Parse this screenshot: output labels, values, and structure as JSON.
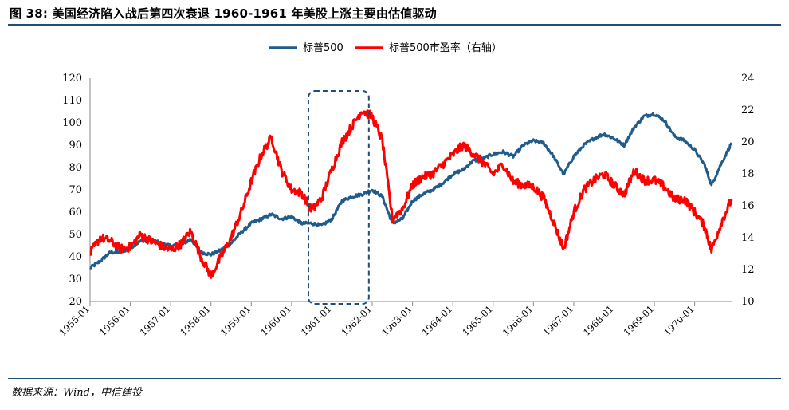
{
  "figure": {
    "title": "图 38: 美国经济陷入战后第四次衰退 1960-1961 年美股上涨主要由估值驱动",
    "source": "数据来源：Wind，中信建投"
  },
  "chart_data": {
    "type": "line",
    "legend": [
      "标普500",
      "标普500市盈率（右轴）"
    ],
    "legend_position": "top-center",
    "colors": {
      "sp500": "#1f5c8b",
      "pe": "#ff0000",
      "frame": "#1f4e79",
      "highlight_box": "#1f4e79"
    },
    "y_left": {
      "min": 20,
      "max": 120,
      "ticks": [
        20,
        30,
        40,
        50,
        60,
        70,
        80,
        90,
        100,
        110,
        120
      ]
    },
    "y_right": {
      "min": 10,
      "max": 24,
      "ticks": [
        10,
        12,
        14,
        16,
        18,
        20,
        22,
        24
      ]
    },
    "x_ticks": [
      "1955-01",
      "1956-01",
      "1957-01",
      "1958-01",
      "1959-01",
      "1960-01",
      "1961-01",
      "1962-01",
      "1963-01",
      "1964-01",
      "1965-01",
      "1966-01",
      "1967-01",
      "1968-01",
      "1969-01",
      "1970-01"
    ],
    "highlight": {
      "from": "1960-06",
      "to": "1961-12",
      "style": "dashed rounded box"
    },
    "grid": false,
    "series": [
      {
        "name": "标普500",
        "axis": "left",
        "points": [
          [
            "1955-01",
            35
          ],
          [
            "1955-04",
            38
          ],
          [
            "1955-07",
            42
          ],
          [
            "1955-10",
            42
          ],
          [
            "1956-01",
            44
          ],
          [
            "1956-04",
            47
          ],
          [
            "1956-07",
            48
          ],
          [
            "1956-10",
            46
          ],
          [
            "1957-01",
            45
          ],
          [
            "1957-04",
            45
          ],
          [
            "1957-07",
            48
          ],
          [
            "1957-10",
            42
          ],
          [
            "1958-01",
            41
          ],
          [
            "1958-04",
            43
          ],
          [
            "1958-07",
            46
          ],
          [
            "1958-10",
            51
          ],
          [
            "1959-01",
            55
          ],
          [
            "1959-04",
            57
          ],
          [
            "1959-07",
            59
          ],
          [
            "1959-10",
            57
          ],
          [
            "1960-01",
            58
          ],
          [
            "1960-04",
            55
          ],
          [
            "1960-07",
            55
          ],
          [
            "1960-10",
            54
          ],
          [
            "1961-01",
            57
          ],
          [
            "1961-04",
            65
          ],
          [
            "1961-07",
            67
          ],
          [
            "1961-10",
            68
          ],
          [
            "1962-01",
            70
          ],
          [
            "1962-04",
            67
          ],
          [
            "1962-07",
            55
          ],
          [
            "1962-10",
            57
          ],
          [
            "1963-01",
            65
          ],
          [
            "1963-04",
            68
          ],
          [
            "1963-07",
            70
          ],
          [
            "1963-10",
            73
          ],
          [
            "1964-01",
            77
          ],
          [
            "1964-04",
            79
          ],
          [
            "1964-07",
            83
          ],
          [
            "1964-10",
            84
          ],
          [
            "1965-01",
            86
          ],
          [
            "1965-04",
            87
          ],
          [
            "1965-07",
            85
          ],
          [
            "1965-10",
            90
          ],
          [
            "1966-01",
            92
          ],
          [
            "1966-04",
            91
          ],
          [
            "1966-07",
            85
          ],
          [
            "1966-10",
            77
          ],
          [
            "1967-01",
            85
          ],
          [
            "1967-04",
            90
          ],
          [
            "1967-07",
            93
          ],
          [
            "1967-10",
            95
          ],
          [
            "1968-01",
            93
          ],
          [
            "1968-04",
            90
          ],
          [
            "1968-07",
            98
          ],
          [
            "1968-10",
            103
          ],
          [
            "1969-01",
            104
          ],
          [
            "1969-04",
            101
          ],
          [
            "1969-07",
            94
          ],
          [
            "1969-10",
            92
          ],
          [
            "1970-01",
            88
          ],
          [
            "1970-04",
            81
          ],
          [
            "1970-06",
            72
          ],
          [
            "1970-09",
            82
          ],
          [
            "1970-12",
            91
          ]
        ]
      },
      {
        "name": "标普500市盈率（右轴）",
        "axis": "right",
        "points": [
          [
            "1955-01",
            13.0
          ],
          [
            "1955-04",
            14.0
          ],
          [
            "1955-07",
            13.8
          ],
          [
            "1955-10",
            13.3
          ],
          [
            "1956-01",
            13.4
          ],
          [
            "1956-04",
            14.2
          ],
          [
            "1956-07",
            13.8
          ],
          [
            "1956-10",
            13.5
          ],
          [
            "1957-01",
            13.2
          ],
          [
            "1957-04",
            13.6
          ],
          [
            "1957-07",
            14.4
          ],
          [
            "1957-10",
            12.8
          ],
          [
            "1958-01",
            11.6
          ],
          [
            "1958-04",
            12.8
          ],
          [
            "1958-07",
            14.0
          ],
          [
            "1958-10",
            15.6
          ],
          [
            "1959-01",
            17.5
          ],
          [
            "1959-04",
            19.2
          ],
          [
            "1959-07",
            20.3
          ],
          [
            "1959-10",
            18.2
          ],
          [
            "1960-01",
            17.0
          ],
          [
            "1960-04",
            16.8
          ],
          [
            "1960-07",
            15.7
          ],
          [
            "1960-10",
            16.5
          ],
          [
            "1961-01",
            18.3
          ],
          [
            "1961-04",
            20.0
          ],
          [
            "1961-07",
            21.0
          ],
          [
            "1961-10",
            22.0
          ],
          [
            "1962-01",
            21.6
          ],
          [
            "1962-04",
            20.1
          ],
          [
            "1962-07",
            15.2
          ],
          [
            "1962-10",
            15.8
          ],
          [
            "1963-01",
            17.3
          ],
          [
            "1963-04",
            17.8
          ],
          [
            "1963-07",
            18.0
          ],
          [
            "1963-10",
            18.6
          ],
          [
            "1964-01",
            19.2
          ],
          [
            "1964-04",
            19.8
          ],
          [
            "1964-07",
            19.3
          ],
          [
            "1964-10",
            18.7
          ],
          [
            "1965-01",
            18.0
          ],
          [
            "1965-04",
            18.6
          ],
          [
            "1965-07",
            17.5
          ],
          [
            "1965-10",
            17.3
          ],
          [
            "1966-01",
            17.2
          ],
          [
            "1966-04",
            16.5
          ],
          [
            "1966-07",
            15.0
          ],
          [
            "1966-10",
            13.3
          ],
          [
            "1967-01",
            15.6
          ],
          [
            "1967-04",
            17.0
          ],
          [
            "1967-07",
            17.6
          ],
          [
            "1967-10",
            18.0
          ],
          [
            "1968-01",
            17.3
          ],
          [
            "1968-04",
            16.7
          ],
          [
            "1968-07",
            18.2
          ],
          [
            "1968-10",
            17.6
          ],
          [
            "1969-01",
            17.6
          ],
          [
            "1969-04",
            17.2
          ],
          [
            "1969-07",
            16.4
          ],
          [
            "1969-10",
            16.4
          ],
          [
            "1970-01",
            15.6
          ],
          [
            "1970-04",
            14.7
          ],
          [
            "1970-06",
            13.2
          ],
          [
            "1970-09",
            15.0
          ],
          [
            "1970-12",
            16.4
          ]
        ]
      }
    ]
  }
}
